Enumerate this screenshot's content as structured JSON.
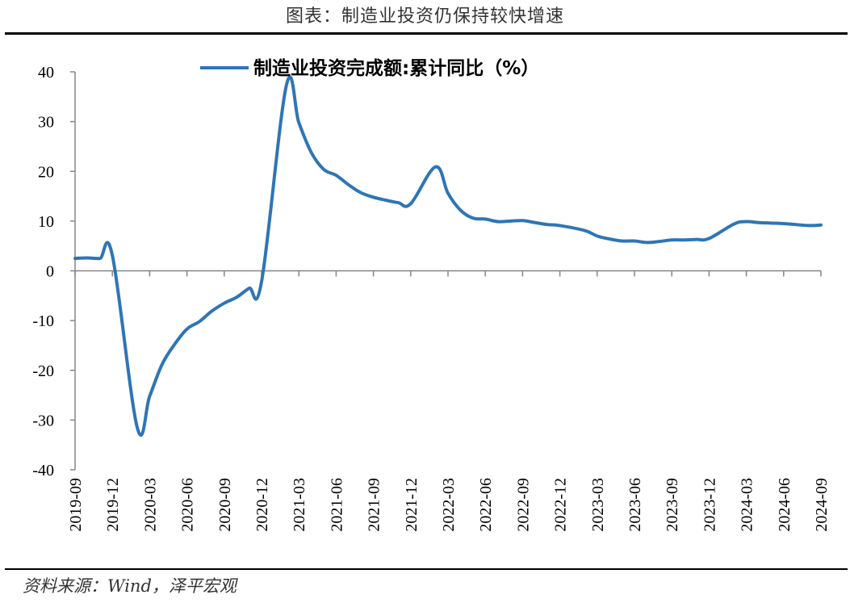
{
  "figure_title": "图表：制造业投资仍保持较快增速",
  "source": "资料来源：Wind，泽平宏观",
  "chart_data": {
    "type": "line",
    "title": "",
    "xlabel": "",
    "ylabel": "",
    "ylim": [
      -40,
      40
    ],
    "y_ticks": [
      40,
      30,
      20,
      10,
      0,
      -10,
      -20,
      -30,
      -40
    ],
    "y_tick_labels": [
      "40",
      "30",
      "20",
      "10",
      "0",
      "-10",
      "-20",
      "-30",
      "-40"
    ],
    "x_tick_labels": [
      "2019-09",
      "2019-12",
      "2020-03",
      "2020-06",
      "2020-09",
      "2020-12",
      "2021-03",
      "2021-06",
      "2021-09",
      "2021-12",
      "2022-03",
      "2022-06",
      "2022-09",
      "2022-12",
      "2023-03",
      "2023-06",
      "2023-09",
      "2023-12",
      "2024-03",
      "2024-06",
      "2024-09"
    ],
    "legend_position": "top-center",
    "grid": false,
    "series": [
      {
        "name": "制造业投资完成额:累计同比（%）",
        "color": "#2E75B6",
        "x": [
          "2019-09",
          "2019-10",
          "2019-11",
          "2019-12",
          "2020-02",
          "2020-03",
          "2020-04",
          "2020-05",
          "2020-06",
          "2020-07",
          "2020-08",
          "2020-09",
          "2020-10",
          "2020-11",
          "2020-12",
          "2021-02",
          "2021-03",
          "2021-04",
          "2021-05",
          "2021-06",
          "2021-07",
          "2021-08",
          "2021-09",
          "2021-10",
          "2021-11",
          "2021-12",
          "2022-02",
          "2022-03",
          "2022-04",
          "2022-05",
          "2022-06",
          "2022-07",
          "2022-08",
          "2022-09",
          "2022-10",
          "2022-11",
          "2022-12",
          "2023-02",
          "2023-03",
          "2023-04",
          "2023-05",
          "2023-06",
          "2023-07",
          "2023-08",
          "2023-09",
          "2023-10",
          "2023-11",
          "2023-12",
          "2024-02",
          "2024-03",
          "2024-04",
          "2024-05",
          "2024-06",
          "2024-07",
          "2024-08",
          "2024-09"
        ],
        "values": [
          2.5,
          2.6,
          2.5,
          3.1,
          -31.5,
          -25.2,
          -18.8,
          -14.8,
          -11.7,
          -10.2,
          -8.1,
          -6.5,
          -5.3,
          -3.5,
          -2.2,
          37.3,
          29.8,
          23.8,
          20.4,
          19.2,
          17.3,
          15.7,
          14.8,
          14.2,
          13.7,
          13.5,
          20.9,
          15.6,
          12.2,
          10.6,
          10.4,
          9.9,
          10.0,
          10.1,
          9.7,
          9.3,
          9.1,
          8.1,
          7.0,
          6.4,
          6.0,
          6.0,
          5.7,
          5.9,
          6.2,
          6.2,
          6.3,
          6.5,
          9.4,
          9.9,
          9.7,
          9.6,
          9.5,
          9.3,
          9.1,
          9.2
        ]
      }
    ]
  }
}
